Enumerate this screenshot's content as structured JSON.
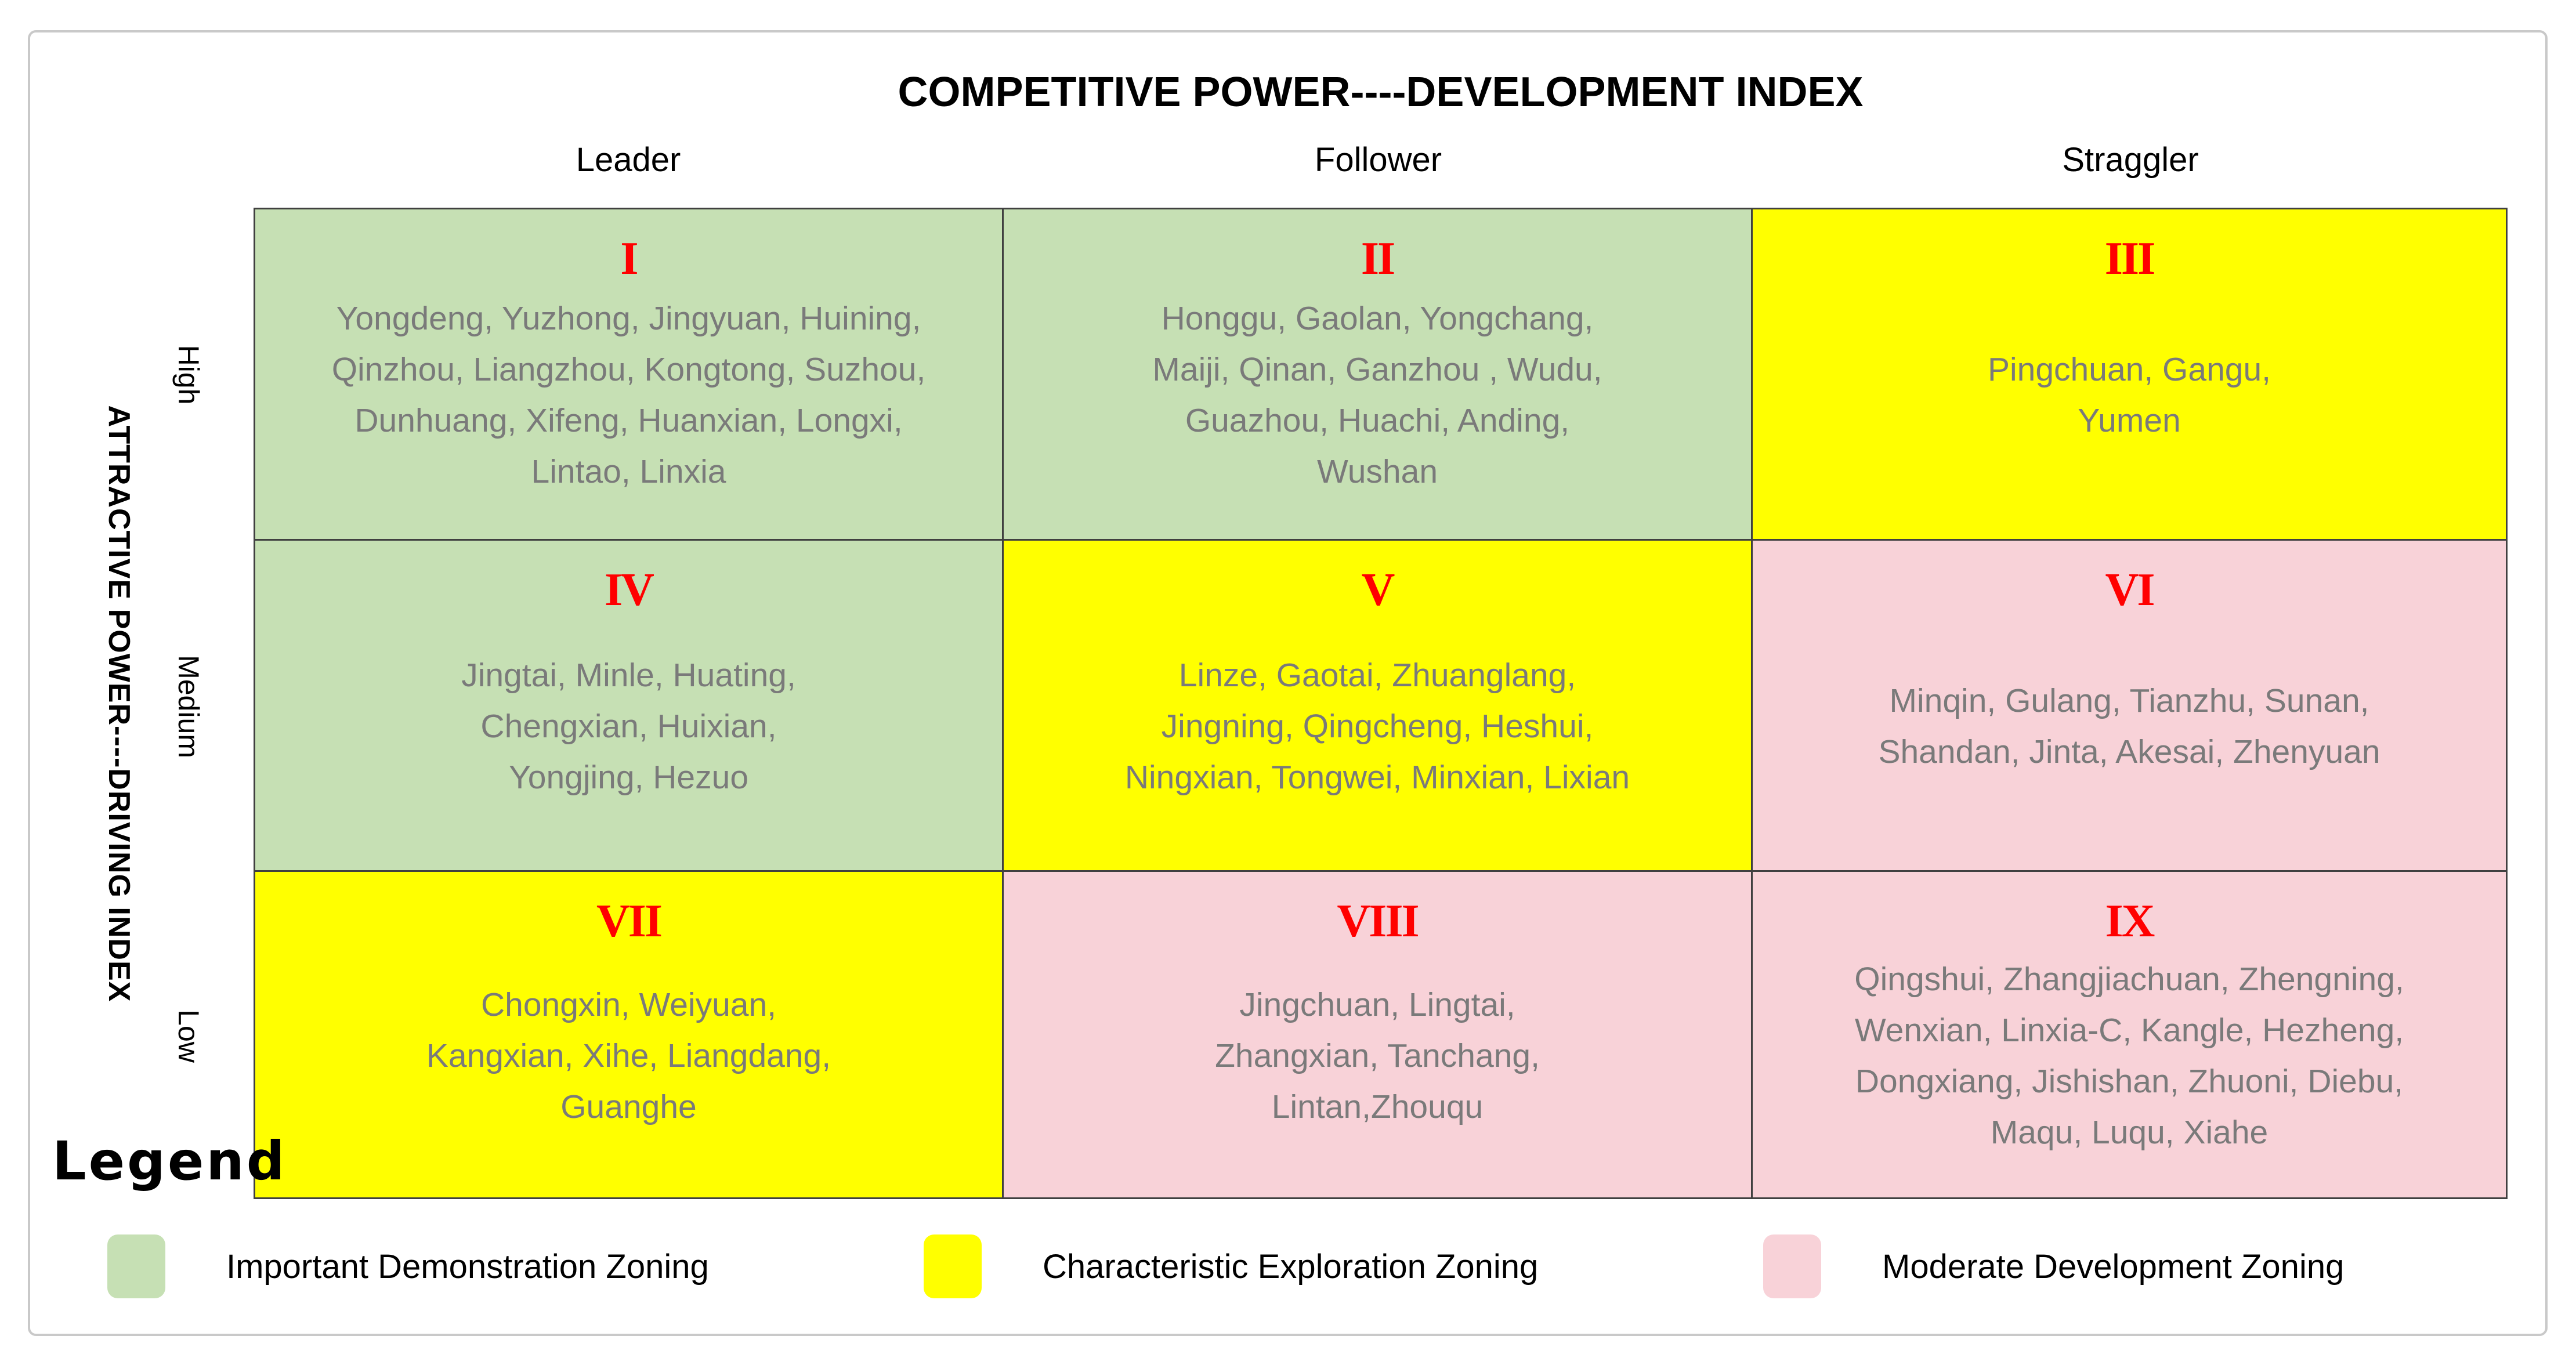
{
  "title": "COMPETITIVE POWER----DEVELOPMENT INDEX",
  "x_axis": {
    "columns": [
      "Leader",
      "Follower",
      "Straggler"
    ]
  },
  "y_axis": {
    "title": "ATTRACTIVE POWER----DRIVING INDEX",
    "rows": [
      "High",
      "Medium",
      "Low"
    ]
  },
  "legend": {
    "heading": "Legend",
    "items": [
      {
        "zone": "green",
        "label": "Important Demonstration Zoning"
      },
      {
        "zone": "yellow",
        "label": "Characteristic Exploration Zoning"
      },
      {
        "zone": "pink",
        "label": "Moderate Development Zoning"
      }
    ]
  },
  "colors": {
    "green": "#c6e0b4",
    "yellow": "#ffff00",
    "pink": "#f8d2d8",
    "numeral": "#ff0000",
    "city_text": "#7a7a7a",
    "grid_line": "#404040",
    "frame_border": "#c9c9c9"
  },
  "cells": [
    {
      "numeral": "I",
      "zone": "green",
      "city_lines": [
        "Yongdeng, Yuzhong, Jingyuan, Huining,",
        "Qinzhou, Liangzhou, Kongtong, Suzhou,",
        "Dunhuang, Xifeng, Huanxian, Longxi,",
        "Lintao, Linxia"
      ]
    },
    {
      "numeral": "II",
      "zone": "green",
      "city_lines": [
        "Honggu, Gaolan, Yongchang,",
        "Maiji, Qinan, Ganzhou , Wudu,",
        "Guazhou, Huachi, Anding,",
        "Wushan"
      ]
    },
    {
      "numeral": "III",
      "zone": "yellow",
      "city_lines": [
        "Pingchuan, Gangu,",
        "Yumen"
      ]
    },
    {
      "numeral": "IV",
      "zone": "green",
      "city_lines": [
        "Jingtai, Minle, Huating,",
        "Chengxian, Huixian,",
        "Yongjing, Hezuo"
      ]
    },
    {
      "numeral": "V",
      "zone": "yellow",
      "city_lines": [
        "Linze, Gaotai, Zhuanglang,",
        "Jingning, Qingcheng, Heshui,",
        "Ningxian, Tongwei, Minxian, Lixian"
      ]
    },
    {
      "numeral": "VI",
      "zone": "pink",
      "city_lines": [
        "Minqin, Gulang, Tianzhu, Sunan,",
        "Shandan, Jinta, Akesai, Zhenyuan"
      ]
    },
    {
      "numeral": "VII",
      "zone": "yellow",
      "city_lines": [
        "Chongxin, Weiyuan,",
        "Kangxian, Xihe, Liangdang,",
        "Guanghe"
      ]
    },
    {
      "numeral": "VIII",
      "zone": "pink",
      "city_lines": [
        "Jingchuan, Lingtai,",
        "Zhangxian, Tanchang,",
        "Lintan,Zhouqu"
      ]
    },
    {
      "numeral": "IX",
      "zone": "pink",
      "city_lines": [
        "Qingshui, Zhangjiachuan, Zhengning,",
        "Wenxian, Linxia-C, Kangle, Hezheng,",
        "Dongxiang, Jishishan, Zhuoni, Diebu,",
        "Maqu, Luqu, Xiahe"
      ]
    }
  ]
}
